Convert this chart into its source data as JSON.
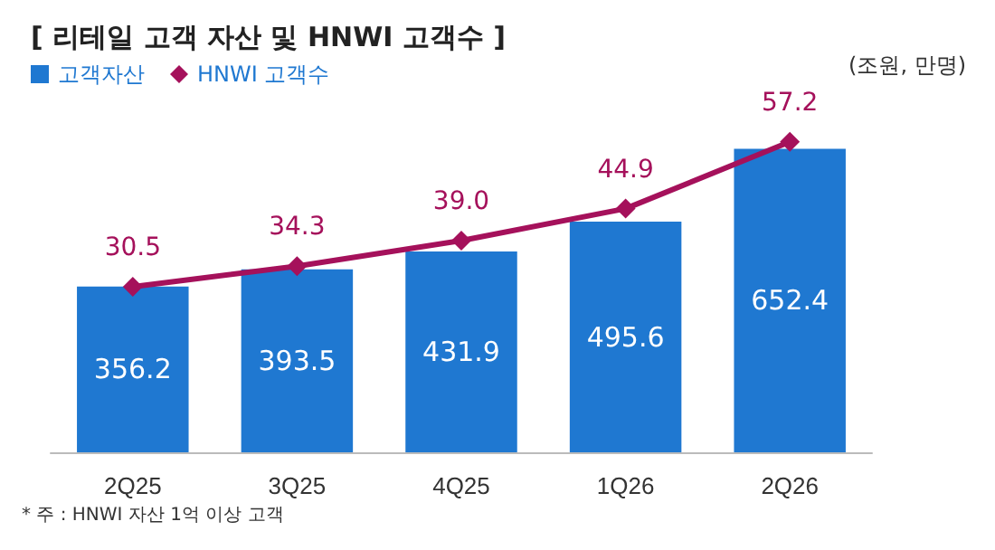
{
  "chart_data": {
    "type": "bar",
    "title": "[ 리테일 고객 자산 및 HNWI 고객수 ]",
    "categories": [
      "2Q25",
      "3Q25",
      "4Q25",
      "1Q26",
      "2Q26"
    ],
    "series": [
      {
        "name": "고객자산",
        "color": "#1f78d1",
        "values": [
          356.2,
          393.5,
          431.9,
          495.6,
          652.4
        ]
      },
      {
        "name": "HNWI 고객수",
        "type": "line",
        "axis": "y2",
        "color": "#a5115b",
        "values": [
          30.5,
          34.3,
          39.0,
          44.9,
          57.2
        ],
        "value_labels": [
          "30.5",
          "34.3",
          "39.0",
          "44.9",
          "57.2"
        ]
      }
    ],
    "tick_labels": "x",
    "data_labels": true,
    "legend": "top left",
    "marker": "diamond",
    "line_style": "solid",
    "grid": false,
    "annotations": [
      "(조원, 만명)",
      "* 주 : HNWI 자산 1억 이상 고객"
    ]
  }
}
